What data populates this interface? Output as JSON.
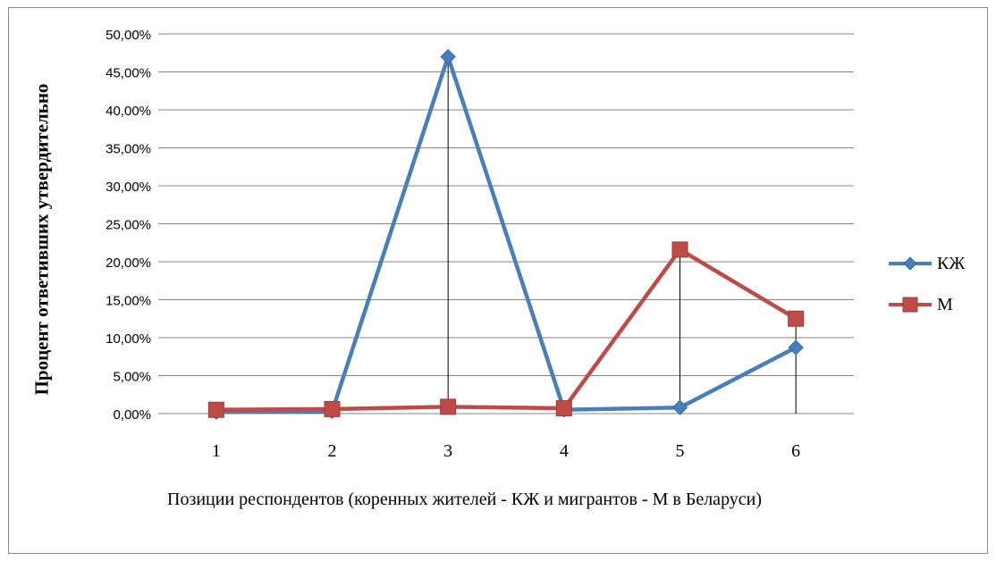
{
  "chart_data": {
    "type": "line",
    "categories": [
      "1",
      "2",
      "3",
      "4",
      "5",
      "6"
    ],
    "series": [
      {
        "name": "КЖ",
        "color": "#4a7ebb",
        "marker": "diamond",
        "values": [
          0.2,
          0.3,
          47.0,
          0.5,
          0.8,
          8.7
        ]
      },
      {
        "name": "М",
        "color": "#be4b48",
        "marker": "square",
        "values": [
          0.5,
          0.6,
          0.9,
          0.7,
          21.6,
          12.5
        ]
      }
    ],
    "drop_lines": true,
    "ylim": [
      0,
      50
    ],
    "yticks": [
      "0,00%",
      "5,00%",
      "10,00%",
      "15,00%",
      "20,00%",
      "25,00%",
      "30,00%",
      "35,00%",
      "40,00%",
      "45,00%",
      "50,00%"
    ],
    "ylabel": "Процент ответивших утвердительно",
    "xlabel": "Позиции респондентов (коренных жителей - КЖ и мигрантов - М    в Беларуси)",
    "grid": true,
    "legend_position": "right"
  }
}
